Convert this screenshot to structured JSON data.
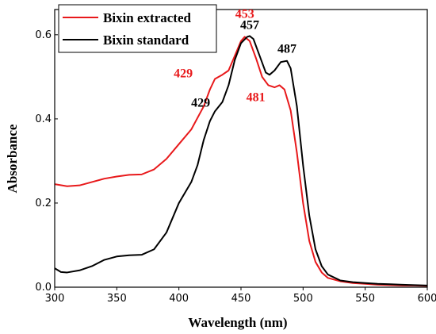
{
  "chart_data": {
    "type": "line",
    "xlabel": "Wavelength (nm)",
    "ylabel": "Absorbance",
    "xlim": [
      300,
      600
    ],
    "ylim": [
      0.0,
      0.66
    ],
    "x_ticks": [
      "300",
      "350",
      "400",
      "450",
      "500",
      "550",
      "600"
    ],
    "y_ticks": [
      "0.0",
      "0.2",
      "0.4",
      "0.6"
    ],
    "grid": false,
    "legend_position": "top-left",
    "series": [
      {
        "name": "Bixin extracted",
        "color": "#e8191b",
        "points": [
          [
            300,
            0.245
          ],
          [
            310,
            0.24
          ],
          [
            320,
            0.242
          ],
          [
            330,
            0.25
          ],
          [
            340,
            0.258
          ],
          [
            350,
            0.263
          ],
          [
            360,
            0.267
          ],
          [
            370,
            0.268
          ],
          [
            380,
            0.28
          ],
          [
            390,
            0.305
          ],
          [
            400,
            0.34
          ],
          [
            410,
            0.375
          ],
          [
            420,
            0.43
          ],
          [
            425,
            0.47
          ],
          [
            429,
            0.495
          ],
          [
            435,
            0.505
          ],
          [
            440,
            0.515
          ],
          [
            445,
            0.55
          ],
          [
            450,
            0.585
          ],
          [
            453,
            0.595
          ],
          [
            457,
            0.585
          ],
          [
            462,
            0.545
          ],
          [
            467,
            0.5
          ],
          [
            472,
            0.48
          ],
          [
            477,
            0.475
          ],
          [
            481,
            0.48
          ],
          [
            485,
            0.47
          ],
          [
            490,
            0.42
          ],
          [
            495,
            0.32
          ],
          [
            500,
            0.2
          ],
          [
            505,
            0.11
          ],
          [
            510,
            0.06
          ],
          [
            515,
            0.035
          ],
          [
            520,
            0.022
          ],
          [
            530,
            0.014
          ],
          [
            540,
            0.01
          ],
          [
            550,
            0.008
          ],
          [
            560,
            0.006
          ],
          [
            570,
            0.005
          ],
          [
            580,
            0.004
          ],
          [
            590,
            0.004
          ],
          [
            600,
            0.003
          ]
        ]
      },
      {
        "name": "Bixin standard",
        "color": "#000000",
        "points": [
          [
            300,
            0.045
          ],
          [
            305,
            0.036
          ],
          [
            310,
            0.035
          ],
          [
            320,
            0.04
          ],
          [
            330,
            0.05
          ],
          [
            340,
            0.065
          ],
          [
            350,
            0.073
          ],
          [
            360,
            0.076
          ],
          [
            370,
            0.077
          ],
          [
            380,
            0.09
          ],
          [
            390,
            0.13
          ],
          [
            400,
            0.2
          ],
          [
            410,
            0.25
          ],
          [
            415,
            0.29
          ],
          [
            420,
            0.35
          ],
          [
            425,
            0.395
          ],
          [
            429,
            0.418
          ],
          [
            435,
            0.44
          ],
          [
            440,
            0.48
          ],
          [
            445,
            0.54
          ],
          [
            450,
            0.58
          ],
          [
            455,
            0.595
          ],
          [
            457,
            0.597
          ],
          [
            460,
            0.59
          ],
          [
            465,
            0.55
          ],
          [
            470,
            0.51
          ],
          [
            473,
            0.505
          ],
          [
            477,
            0.515
          ],
          [
            482,
            0.535
          ],
          [
            487,
            0.538
          ],
          [
            490,
            0.52
          ],
          [
            495,
            0.43
          ],
          [
            500,
            0.29
          ],
          [
            505,
            0.17
          ],
          [
            510,
            0.09
          ],
          [
            515,
            0.05
          ],
          [
            520,
            0.03
          ],
          [
            530,
            0.016
          ],
          [
            540,
            0.012
          ],
          [
            550,
            0.01
          ],
          [
            560,
            0.008
          ],
          [
            570,
            0.007
          ],
          [
            580,
            0.006
          ],
          [
            590,
            0.005
          ],
          [
            600,
            0.004
          ]
        ]
      }
    ],
    "annotations": [
      {
        "text": "453",
        "x": 453,
        "y": 0.595,
        "color": "#e8191b"
      },
      {
        "text": "429",
        "x": 429,
        "y": 0.495,
        "color": "#e8191b"
      },
      {
        "text": "481",
        "x": 481,
        "y": 0.48,
        "color": "#e8191b"
      },
      {
        "text": "457",
        "x": 457,
        "y": 0.597,
        "color": "#000000"
      },
      {
        "text": "487",
        "x": 487,
        "y": 0.538,
        "color": "#000000"
      },
      {
        "text": "429",
        "x": 429,
        "y": 0.418,
        "color": "#000000"
      }
    ]
  }
}
